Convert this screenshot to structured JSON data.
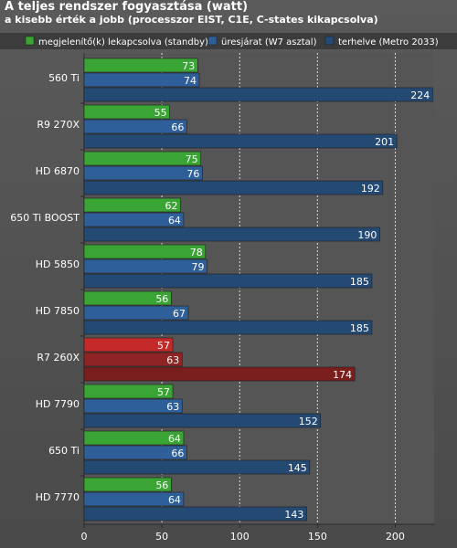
{
  "chart_data": {
    "type": "bar",
    "title": "A teljes rendszer fogyasztása (watt)",
    "subtitle": "a kisebb érték a jobb (processzor EIST, C1E, C-states kikapcsolva)",
    "categories": [
      "560 Ti",
      "R9 270X",
      "HD 6870",
      "650 Ti BOOST",
      "HD 5850",
      "HD 7850",
      "R7 260X",
      "HD 7790",
      "650 Ti",
      "HD 7770"
    ],
    "series": [
      {
        "name": "megjelenítő(k) lekapcsolva (standby)",
        "values": [
          73,
          55,
          75,
          62,
          78,
          56,
          57,
          57,
          64,
          56
        ]
      },
      {
        "name": "üresjárat (W7 asztal)",
        "values": [
          74,
          66,
          76,
          64,
          79,
          67,
          63,
          63,
          66,
          64
        ]
      },
      {
        "name": "terhelve (Metro 2033)",
        "values": [
          224,
          201,
          192,
          190,
          185,
          185,
          174,
          152,
          145,
          143
        ]
      }
    ],
    "highlight_category": "R7 260X",
    "xlim": [
      0,
      225
    ],
    "xticks": [
      0,
      50,
      100,
      150,
      200
    ],
    "orientation": "horizontal",
    "grid": "vertical dashed",
    "legend_position": "top",
    "colors": {
      "series": [
        "#3aa535",
        "#2f5f99",
        "#244a74"
      ],
      "highlight": [
        "#c42a2a",
        "#8f2424",
        "#7a1e1e"
      ]
    }
  }
}
